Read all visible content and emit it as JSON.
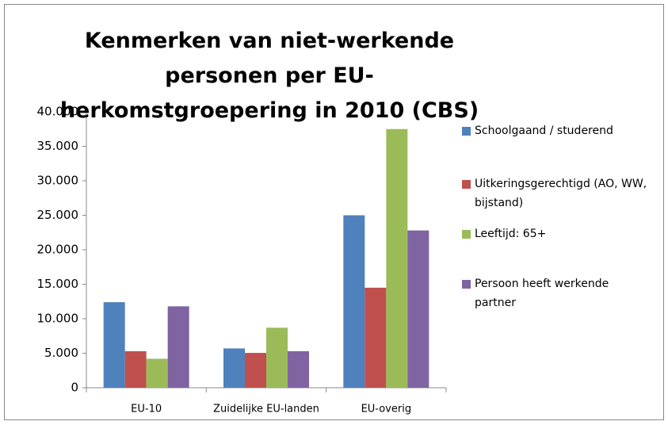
{
  "chart_data": {
    "type": "bar",
    "title": "Kenmerken van niet-werkende personen per EU-herkomstgroepering in 2010 (CBS)",
    "categories": [
      "EU-10",
      "Zuidelijke EU-landen",
      "EU-overig"
    ],
    "series": [
      {
        "name": "Schoolgaand / studerend",
        "color": "#4f81bd",
        "values": [
          12400,
          5700,
          25000
        ]
      },
      {
        "name": "Uitkeringsgerechtigd (AO, WW, bijstand)",
        "color": "#c0504d",
        "values": [
          5300,
          5050,
          14500
        ]
      },
      {
        "name": "Leeftijd: 65+",
        "color": "#9bbb59",
        "values": [
          4200,
          8700,
          37500
        ]
      },
      {
        "name": "Persoon heeft werkende partner",
        "color": "#8064a2",
        "values": [
          11800,
          5300,
          22800
        ]
      }
    ],
    "ylim": [
      0,
      40000
    ],
    "yticks": [
      0,
      {
        "value": 5000,
        "label": "5.000"
      },
      {
        "value": 10000,
        "label": "10.000"
      },
      {
        "value": 15000,
        "label": "15.000"
      },
      {
        "value": 20000,
        "label": "20.000"
      },
      {
        "value": 25000,
        "label": "25.000"
      },
      {
        "value": 30000,
        "label": "30.000"
      },
      {
        "value": 35000,
        "label": "35.000"
      },
      {
        "value": 40000,
        "label": "40.000"
      }
    ],
    "grid": false,
    "legend": "right"
  }
}
